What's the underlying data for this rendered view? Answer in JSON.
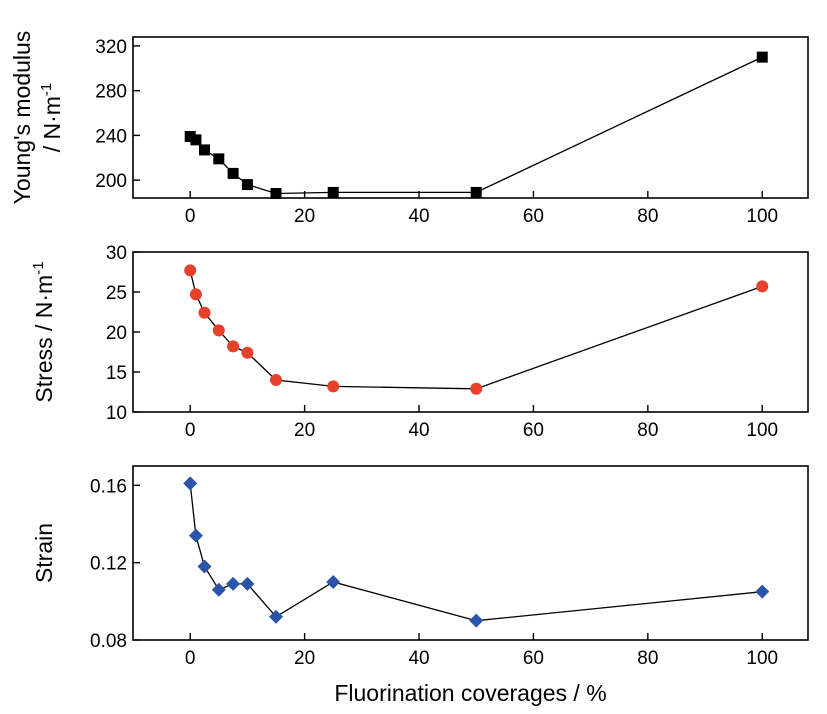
{
  "chart_data": [
    {
      "type": "line",
      "title": "",
      "xlabel": "",
      "ylabel_lines": [
        "Young's modulus",
        "/ N·m"
      ],
      "ylabel_superscript": "-1",
      "xlim": [
        -10,
        108
      ],
      "ylim": [
        184,
        328
      ],
      "xticks": [
        0,
        20,
        40,
        60,
        80,
        100
      ],
      "yticks": [
        200,
        240,
        280,
        320
      ],
      "marker": "square",
      "color": "#000000",
      "x": [
        0,
        1,
        2.5,
        5,
        7.5,
        10,
        15,
        25,
        50,
        100
      ],
      "y": [
        239,
        236,
        227,
        219,
        206,
        196,
        188,
        189,
        189,
        310
      ],
      "grid": false,
      "legend": "none"
    },
    {
      "type": "line",
      "title": "",
      "xlabel": "",
      "ylabel_lines": [
        "Stress / N·m"
      ],
      "ylabel_superscript": "-1",
      "xlim": [
        -10,
        108
      ],
      "ylim": [
        10,
        30
      ],
      "xticks": [
        0,
        20,
        40,
        60,
        80,
        100
      ],
      "yticks": [
        10,
        15,
        20,
        25,
        30
      ],
      "marker": "circle",
      "color": "#e8402a",
      "x": [
        0,
        1,
        2.5,
        5,
        7.5,
        10,
        15,
        25,
        50,
        100
      ],
      "y": [
        27.7,
        24.7,
        22.4,
        20.2,
        18.2,
        17.4,
        14.0,
        13.2,
        12.9,
        25.7
      ],
      "grid": false,
      "legend": "none"
    },
    {
      "type": "line",
      "title": "",
      "xlabel": "Fluorination coverages / %",
      "ylabel_lines": [
        "Strain"
      ],
      "ylabel_superscript": "",
      "xlim": [
        -10,
        108
      ],
      "ylim": [
        0.08,
        0.17
      ],
      "xticks": [
        0,
        20,
        40,
        60,
        80,
        100
      ],
      "yticks": [
        0.08,
        0.12,
        0.16
      ],
      "ytick_labels": [
        "0.08",
        "0.12",
        "0.16"
      ],
      "marker": "diamond",
      "color": "#2a54a8",
      "x": [
        0,
        1,
        2.5,
        5,
        7.5,
        10,
        15,
        25,
        50,
        100
      ],
      "y": [
        0.161,
        0.134,
        0.118,
        0.106,
        0.109,
        0.109,
        0.092,
        0.11,
        0.09,
        0.105
      ],
      "grid": false,
      "legend": "none"
    }
  ]
}
